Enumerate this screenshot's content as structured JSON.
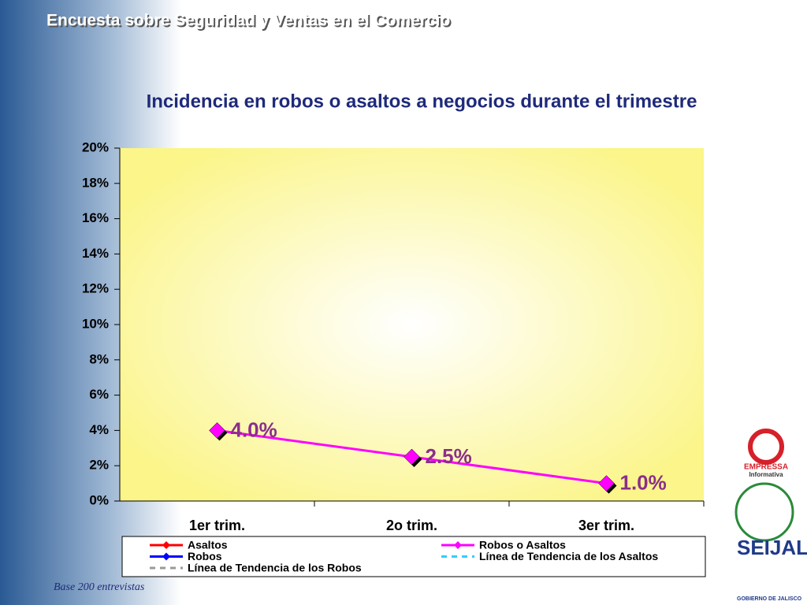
{
  "header": "Encuesta sobre Seguridad y Ventas en el Comercio",
  "chart_data": {
    "type": "line",
    "title": "Incidencia en robos o asaltos a negocios durante el trimestre",
    "categories": [
      "1er trim.",
      "2o trim.",
      "3er trim."
    ],
    "series": [
      {
        "name": "Asaltos",
        "color": "#ff0000",
        "line_style": "solid",
        "marker": "diamond",
        "values": [
          null,
          null,
          null
        ]
      },
      {
        "name": "Robos o Asaltos",
        "color": "#ff00ff",
        "line_style": "solid",
        "marker": "diamond",
        "values": [
          4.0,
          2.5,
          1.0
        ],
        "value_labels": [
          "4.0%",
          "2.5%",
          "1.0%"
        ]
      },
      {
        "name": "Robos",
        "color": "#0000ff",
        "line_style": "solid",
        "marker": "diamond",
        "values": [
          null,
          null,
          null
        ]
      },
      {
        "name": "Línea de Tendencia de los Asaltos",
        "color": "#33ccff",
        "line_style": "dashed",
        "marker": "none",
        "values": [
          null,
          null,
          null
        ]
      },
      {
        "name": "Línea de Tendencia de los Robos",
        "color": "#999999",
        "line_style": "dashed",
        "marker": "none",
        "values": [
          null,
          null,
          null
        ]
      }
    ],
    "ylim": [
      0,
      20
    ],
    "yticks": [
      {
        "value": 0,
        "label": "0%"
      },
      {
        "value": 2,
        "label": "2%"
      },
      {
        "value": 4,
        "label": "4%"
      },
      {
        "value": 6,
        "label": "6%"
      },
      {
        "value": 8,
        "label": "8%"
      },
      {
        "value": 10,
        "label": "10%"
      },
      {
        "value": 12,
        "label": "12%"
      },
      {
        "value": 14,
        "label": "14%"
      },
      {
        "value": 16,
        "label": "16%"
      },
      {
        "value": 18,
        "label": "18%"
      },
      {
        "value": 20,
        "label": "20%"
      }
    ],
    "grid": false,
    "legend": "bottom"
  },
  "footnote": "Base 200 entrevistas",
  "logos": [
    "EMPRESSA",
    "Informativa",
    "SEIJAL",
    "GOBIERNO DE JALISCO"
  ]
}
